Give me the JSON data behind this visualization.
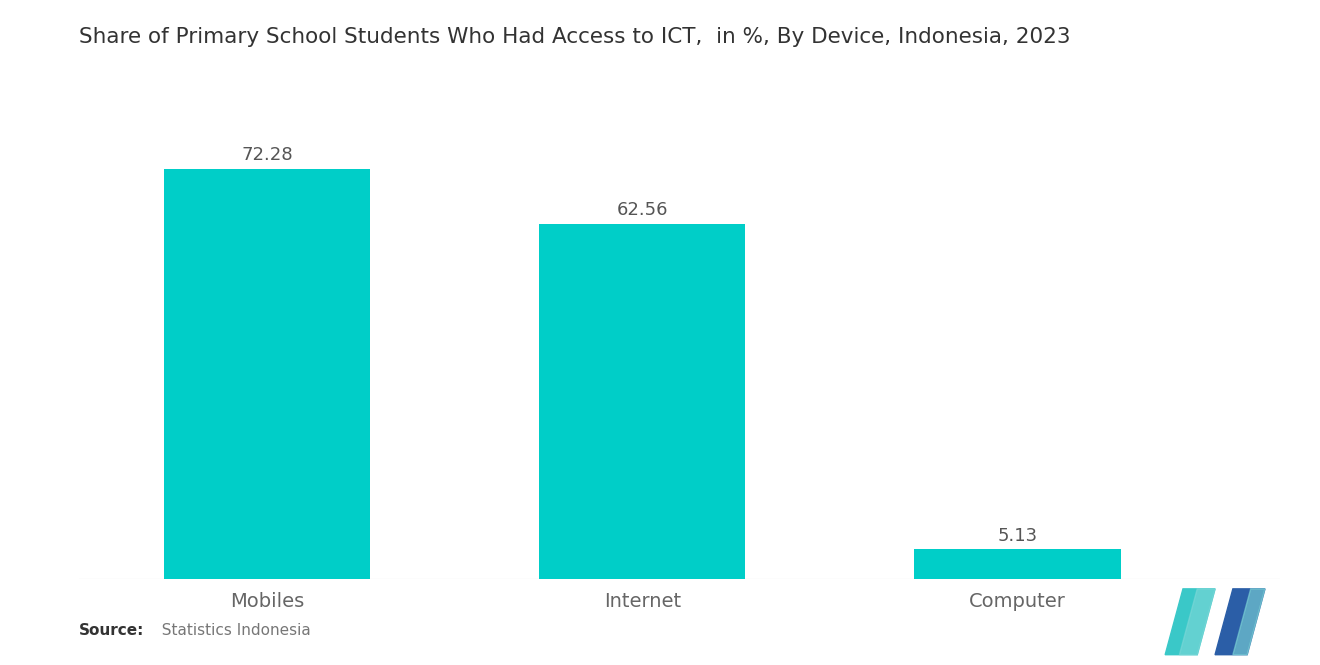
{
  "title": "Share of Primary School Students Who Had Access to ICT,  in %, By Device, Indonesia, 2023",
  "categories": [
    "Mobiles",
    "Internet",
    "Computer"
  ],
  "values": [
    72.28,
    62.56,
    5.13
  ],
  "bar_color": "#00CEC8",
  "background_color": "#ffffff",
  "title_fontsize": 15.5,
  "label_fontsize": 14,
  "value_fontsize": 13,
  "source_bold": "Source:",
  "source_normal": "  Statistics Indonesia",
  "ylim": [
    0,
    88
  ],
  "bar_width": 0.55,
  "bar_positions": [
    0.5,
    1.5,
    2.5
  ],
  "xlim": [
    0.0,
    3.2
  ],
  "logo_teal": "#3AC8C8",
  "logo_blue": "#2B5EA7",
  "logo_light_teal": "#7FD8D8"
}
